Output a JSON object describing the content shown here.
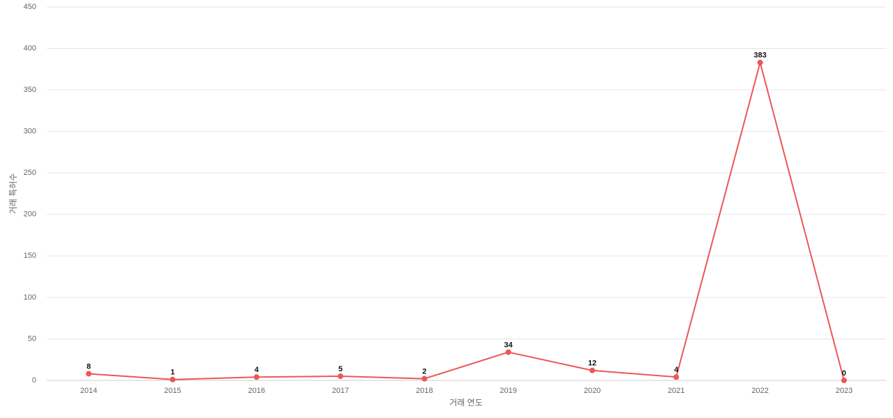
{
  "chart_data": {
    "type": "line",
    "x_label": "거래 연도",
    "y_label": "거래 특허수",
    "categories": [
      "2014",
      "2015",
      "2016",
      "2017",
      "2018",
      "2019",
      "2020",
      "2021",
      "2022",
      "2023"
    ],
    "series": [
      {
        "name": "거래 특허수",
        "color": "#ec5656",
        "values": [
          8,
          1,
          4,
          5,
          2,
          34,
          12,
          4,
          383,
          0
        ]
      }
    ],
    "ylim": [
      0,
      450
    ],
    "yticks": [
      0,
      50,
      100,
      150,
      200,
      250,
      300,
      350,
      400,
      450
    ],
    "grid": true
  }
}
